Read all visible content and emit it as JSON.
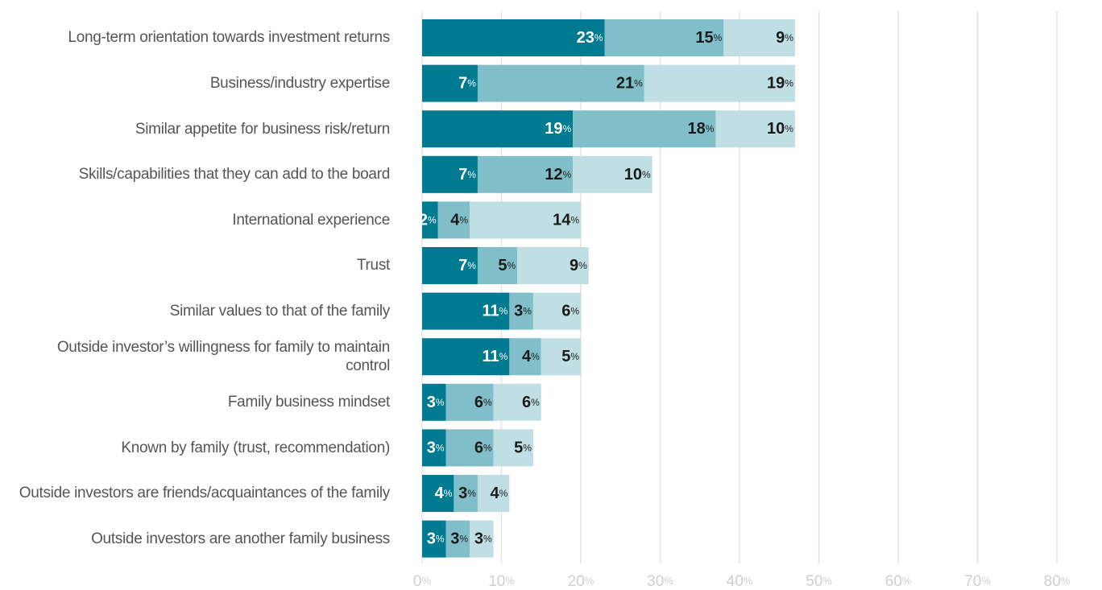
{
  "chart_data": {
    "type": "stacked-barh",
    "categories": [
      "Long-term orientation towards investment returns",
      "Business/industry expertise",
      "Similar appetite for business risk/return",
      "Skills/capabilities that they can add to the board",
      "International experience",
      "Trust",
      "Similar values to that of the family",
      "Outside investor’s willingness for family to maintain control",
      "Family business mindset",
      "Known by family (trust, recommendation)",
      "Outside investors are friends/acquaintances of the family",
      "Outside investors are another family business"
    ],
    "series": [
      {
        "color": "#007a91",
        "label_color": "#ffffff",
        "values": [
          23,
          7,
          19,
          7,
          2,
          7,
          11,
          11,
          3,
          3,
          4,
          3
        ],
        "value_labels": [
          "23%",
          "7%",
          "19%",
          "7%",
          "2%",
          "7%",
          "11%",
          "11%",
          "3%",
          "3%",
          "4%",
          "3%"
        ]
      },
      {
        "color": "#80bfca",
        "label_color": "#1a1a1a",
        "values": [
          15,
          21,
          18,
          12,
          4,
          5,
          3,
          4,
          6,
          6,
          3,
          3
        ],
        "value_labels": [
          "15%",
          "21%",
          "18%",
          "12%",
          "4%",
          "5%",
          "3%",
          "4%",
          "6%",
          "6%",
          "3%",
          "3%"
        ]
      },
      {
        "color": "#bfdfe4",
        "label_color": "#1a1a1a",
        "values": [
          9,
          19,
          10,
          10,
          14,
          9,
          6,
          5,
          6,
          5,
          4,
          3
        ],
        "value_labels": [
          "9%",
          "19%",
          "10%",
          "10%",
          "14%",
          "9%",
          "6%",
          "5%",
          "6%",
          "5%",
          "4%",
          "3%"
        ]
      }
    ],
    "xlim": [
      0,
      80
    ],
    "xticks": [
      {
        "value": 0,
        "label": "0%"
      },
      {
        "value": 10,
        "label": "10%"
      },
      {
        "value": 20,
        "label": "20%"
      },
      {
        "value": 30,
        "label": "30%"
      },
      {
        "value": 40,
        "label": "40%"
      },
      {
        "value": 50,
        "label": "50%"
      },
      {
        "value": 60,
        "label": "60%"
      },
      {
        "value": 70,
        "label": "70%"
      },
      {
        "value": 80,
        "label": "80%"
      }
    ],
    "grid": true
  }
}
